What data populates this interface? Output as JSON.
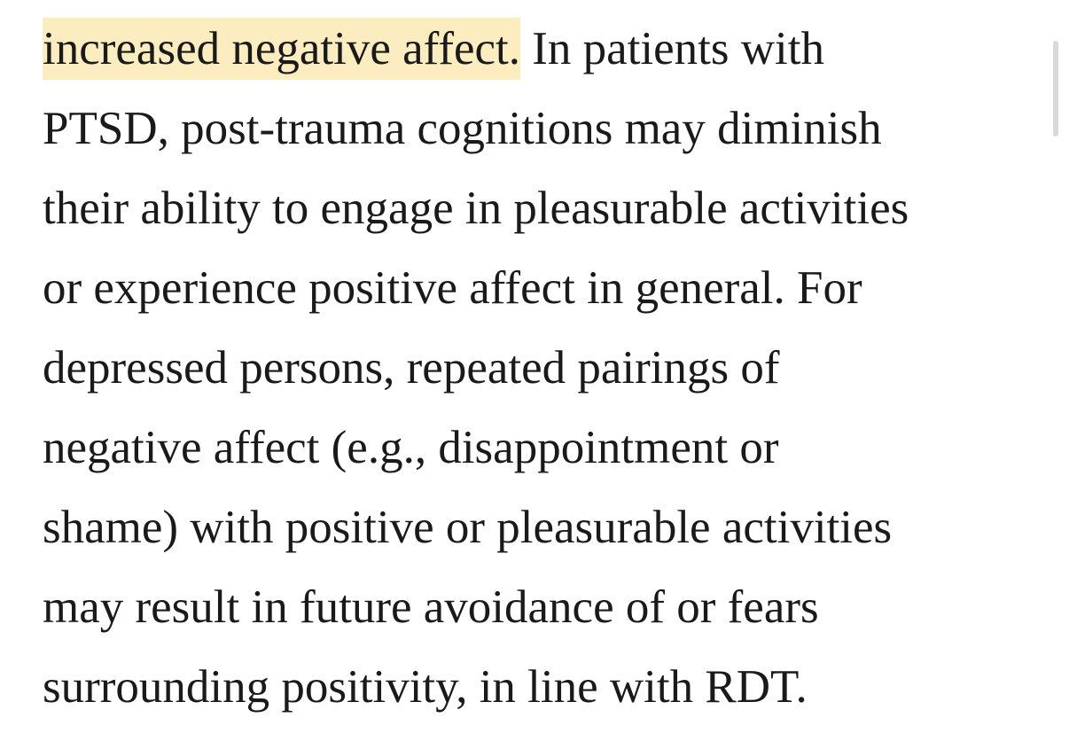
{
  "article": {
    "highlighted_text": "increased negative affect.",
    "highlight_color": "#fcedc0",
    "line_1_rest": " In patients with",
    "lines": [
      "PTSD, post-trauma cognitions may diminish",
      "their ability to engage in pleasurable activities",
      "or experience positive affect in general. For",
      "depressed persons, repeated pairings of",
      "negative affect (e.g., disappointment or",
      "shame) with positive or pleasurable activities",
      "may result in future avoidance of or fears",
      "surrounding positivity, in line with RDT."
    ]
  }
}
